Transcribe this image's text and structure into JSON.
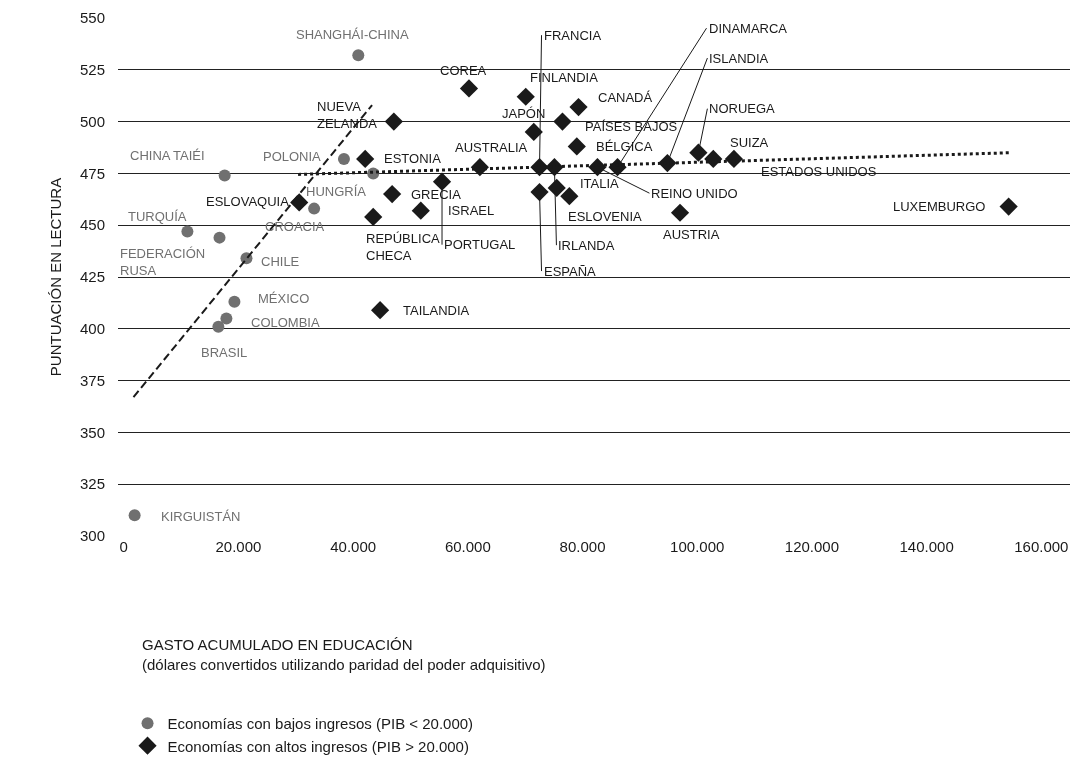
{
  "chart_data": {
    "type": "scatter",
    "ylabel": "PUNTUACIÓN EN LECTURA",
    "xlim": [
      -1000,
      165000
    ],
    "xticks": [
      {
        "value": 0,
        "label": "0"
      },
      {
        "value": 20000,
        "label": "20.000"
      },
      {
        "value": 40000,
        "label": "40.000"
      },
      {
        "value": 60000,
        "label": "60.000"
      },
      {
        "value": 80000,
        "label": "80.000"
      },
      {
        "value": 100000,
        "label": "100.000"
      },
      {
        "value": 120000,
        "label": "120.000"
      },
      {
        "value": 140000,
        "label": "140.000"
      },
      {
        "value": 160000,
        "label": "160.000"
      }
    ],
    "ylim": [
      300,
      550
    ],
    "yticks": [
      300,
      325,
      350,
      375,
      400,
      425,
      450,
      475,
      500,
      525,
      550
    ],
    "grid": "y",
    "legend": "bottom",
    "series": [
      {
        "name": "Economías con bajos ingresos (PIB < 20.000)",
        "color": "#707070",
        "marker": "circle",
        "x": [
          40900,
          17600,
          38400,
          43500,
          33200,
          11100,
          16700,
          21400,
          19300,
          17900,
          16500,
          1900
        ],
        "values": [
          532,
          474,
          482,
          475,
          458,
          447,
          444,
          434,
          413,
          405,
          401,
          310
        ]
      },
      {
        "name": "Economías con altos ingresos (PIB > 20.000)",
        "color": "#1a1a1a",
        "marker": "diamond",
        "x": [
          47100,
          42100,
          30600,
          46800,
          43500,
          51800,
          44700,
          60200,
          70100,
          79300,
          71500,
          76500,
          79000,
          62100,
          55500,
          72500,
          75100,
          72500,
          75500,
          77700,
          82600,
          86100,
          94800,
          100200,
          102800,
          106400,
          97000,
          154300
        ],
        "values": [
          500,
          482,
          461,
          465,
          454,
          457,
          409,
          516,
          512,
          507,
          495,
          500,
          488,
          478,
          471,
          478,
          478,
          466,
          468,
          464,
          478,
          478,
          480,
          485,
          482,
          482,
          456,
          459
        ]
      },
      {
        "type": "line",
        "color": "#1a1a1a",
        "marker": "none",
        "line_style": "dashed",
        "x": [
          1700,
          43300
        ],
        "values": [
          367,
          508
        ]
      },
      {
        "type": "line",
        "color": "#1a1a1a",
        "marker": "none",
        "line_style": "dotted",
        "x": [
          30400,
          154800
        ],
        "values": [
          474.5,
          485
        ]
      }
    ],
    "annotations": [
      {
        "text": "SHANGHÁI-CHINA",
        "x": 40900,
        "y": 532
      },
      {
        "text": "CHINA TAIÉI",
        "x": 17600,
        "y": 474
      },
      {
        "text": "POLONIA",
        "x": 38400,
        "y": 482
      },
      {
        "text": "HUNGRÍA",
        "x": 43500,
        "y": 475
      },
      {
        "text": "CROACIA",
        "x": 33200,
        "y": 458
      },
      {
        "text": "TURQUÍA",
        "x": 11100,
        "y": 447
      },
      {
        "text": "FEDERACIÓN\nRUSA",
        "x": 16700,
        "y": 444
      },
      {
        "text": "CHILE",
        "x": 21400,
        "y": 434
      },
      {
        "text": "MÉXICO",
        "x": 19300,
        "y": 413
      },
      {
        "text": "COLOMBIA",
        "x": 17900,
        "y": 405
      },
      {
        "text": "BRASIL",
        "x": 16500,
        "y": 401
      },
      {
        "text": "KIRGUISTÁN",
        "x": 1900,
        "y": 310
      },
      {
        "text": "NUEVA\nZELANDA",
        "x": 47100,
        "y": 500
      },
      {
        "text": "ESTONIA",
        "x": 42100,
        "y": 482
      },
      {
        "text": "ESLOVAQUIA",
        "x": 30600,
        "y": 461
      },
      {
        "text": "GRECIA",
        "x": 46800,
        "y": 465
      },
      {
        "text": "REPÚBLICA\nCHECA",
        "x": 43500,
        "y": 454
      },
      {
        "text": "ISRAEL",
        "x": 51800,
        "y": 457
      },
      {
        "text": "TAILANDIA",
        "x": 44700,
        "y": 409
      },
      {
        "text": "COREA",
        "x": 60200,
        "y": 516
      },
      {
        "text": "FINLANDIA",
        "x": 70100,
        "y": 512
      },
      {
        "text": "CANADÁ",
        "x": 79300,
        "y": 507
      },
      {
        "text": "JAPÓN",
        "x": 71500,
        "y": 495
      },
      {
        "text": "PAÍSES BAJOS",
        "x": 76500,
        "y": 500
      },
      {
        "text": "BÉLGICA",
        "x": 79000,
        "y": 488
      },
      {
        "text": "AUSTRALIA",
        "x": 62100,
        "y": 478
      },
      {
        "text": "PORTUGAL",
        "x": 55500,
        "y": 471
      },
      {
        "text": "FRANCIA",
        "x": 72500,
        "y": 478
      },
      {
        "text": "IRLANDA",
        "x": 75100,
        "y": 478
      },
      {
        "text": "ESPAÑA",
        "x": 72500,
        "y": 466
      },
      {
        "text": "ITALIA",
        "x": 75500,
        "y": 468
      },
      {
        "text": "ESLOVENIA",
        "x": 77700,
        "y": 464
      },
      {
        "text": "REINO UNIDO",
        "x": 82600,
        "y": 478
      },
      {
        "text": "DINAMARCA",
        "x": 86100,
        "y": 478
      },
      {
        "text": "ISLANDIA",
        "x": 94800,
        "y": 480
      },
      {
        "text": "NORUEGA",
        "x": 100200,
        "y": 485
      },
      {
        "text": "SUIZA",
        "x": 102800,
        "y": 482
      },
      {
        "text": "ESTADOS UNIDOS",
        "x": 106400,
        "y": 482
      },
      {
        "text": "AUSTRIA",
        "x": 97000,
        "y": 456
      },
      {
        "text": "LUXEMBURGO",
        "x": 154300,
        "y": 459
      },
      "GASTO ACUMULADO EN EDUCACIÓN\n(dólares convertidos utilizando paridad del poder adquisitivo)"
    ]
  }
}
